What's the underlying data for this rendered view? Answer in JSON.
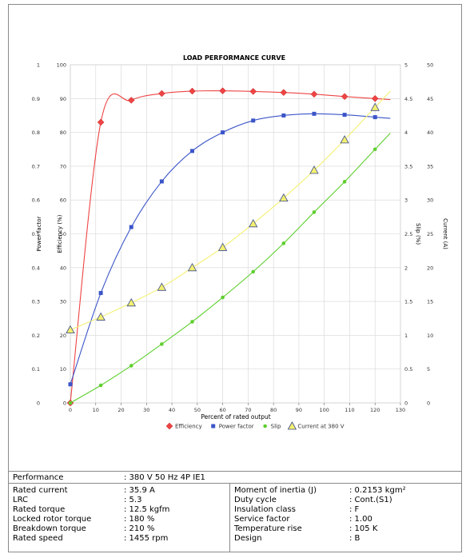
{
  "chart_data": {
    "type": "line",
    "title": "LOAD PERFORMANCE CURVE",
    "xlabel": "Percent of rated output",
    "xlim": [
      0,
      130
    ],
    "x_ticks": [
      "0",
      "10",
      "20",
      "30",
      "40",
      "50",
      "60",
      "70",
      "80",
      "90",
      "100",
      "110",
      "120",
      "130"
    ],
    "grid": true,
    "legend_position": "bottom",
    "axes": [
      {
        "id": "pf",
        "label": "Power factor",
        "side": "left",
        "range": [
          0,
          1
        ],
        "ticks": [
          "0",
          "0.1",
          "0.2",
          "0.3",
          "0.4",
          "0.5",
          "0.6",
          "0.7",
          "0.8",
          "0.9",
          "1"
        ]
      },
      {
        "id": "eff",
        "label": "Efficiency (%)",
        "side": "left",
        "range": [
          0,
          100
        ],
        "ticks": [
          "0",
          "10",
          "20",
          "30",
          "40",
          "50",
          "60",
          "70",
          "80",
          "90",
          "100"
        ]
      },
      {
        "id": "slip",
        "label": "Slip (%)",
        "side": "right",
        "range": [
          0,
          5
        ],
        "ticks": [
          "0",
          "0.5",
          "1",
          "1.5",
          "2",
          "2.5",
          "3",
          "3.5",
          "4",
          "4.5",
          "5"
        ]
      },
      {
        "id": "cur",
        "label": "Current (A)",
        "side": "right",
        "range": [
          0,
          50
        ],
        "ticks": [
          "0",
          "5",
          "10",
          "15",
          "20",
          "25",
          "30",
          "35",
          "40",
          "45",
          "50"
        ]
      }
    ],
    "series": [
      {
        "name": "Efficiency",
        "axis": "eff",
        "color": "#ee4444",
        "marker": "diamond",
        "x": [
          0,
          12,
          24,
          36,
          48,
          60,
          72,
          84,
          96,
          108,
          120
        ],
        "y": [
          0,
          83,
          89.5,
          91.5,
          92.2,
          92.3,
          92.1,
          91.8,
          91.3,
          90.6,
          90
        ]
      },
      {
        "name": "Power factor",
        "axis": "pf",
        "color": "#3b55c8",
        "marker": "square",
        "x": [
          0,
          12,
          24,
          36,
          48,
          60,
          72,
          84,
          96,
          108,
          120
        ],
        "y": [
          0.055,
          0.325,
          0.52,
          0.655,
          0.745,
          0.8,
          0.835,
          0.85,
          0.855,
          0.852,
          0.845
        ]
      },
      {
        "name": "Slip",
        "axis": "slip",
        "color": "#5ecf2e",
        "marker": "circle",
        "x": [
          0,
          12,
          24,
          36,
          48,
          60,
          72,
          84,
          96,
          108,
          120
        ],
        "y": [
          0,
          0.26,
          0.55,
          0.87,
          1.2,
          1.56,
          1.94,
          2.36,
          2.82,
          3.27,
          3.75
        ]
      },
      {
        "name": "Current at 380 V",
        "axis": "cur",
        "color": "#f4f070",
        "marker": "triangle",
        "x": [
          0,
          12,
          24,
          36,
          48,
          60,
          72,
          84,
          96,
          108,
          120
        ],
        "y": [
          10.8,
          12.7,
          14.8,
          17.1,
          20,
          23,
          26.5,
          30.3,
          34.4,
          38.9,
          43.7
        ]
      }
    ]
  },
  "specs": {
    "performance_label": "Performance",
    "performance_value": ": 380 V 50 Hz 4P IE1",
    "left": [
      {
        "label": "Rated current",
        "value": ": 35.9 A"
      },
      {
        "label": "LRC",
        "value": ": 5.3"
      },
      {
        "label": "Rated torque",
        "value": ": 12.5 kgfm"
      },
      {
        "label": "Locked rotor torque",
        "value": ": 180 %"
      },
      {
        "label": "Breakdown torque",
        "value": ": 210 %"
      },
      {
        "label": "Rated speed",
        "value": ": 1455 rpm"
      }
    ],
    "right": [
      {
        "label": "Moment of inertia (J)",
        "value": ": 0.2153 kgm²"
      },
      {
        "label": "Duty cycle",
        "value": ": Cont.(S1)"
      },
      {
        "label": "Insulation class",
        "value": ": F"
      },
      {
        "label": "Service factor",
        "value": ": 1.00"
      },
      {
        "label": "Temperature rise",
        "value": ": 105 K"
      },
      {
        "label": "Design",
        "value": ": B"
      }
    ]
  }
}
